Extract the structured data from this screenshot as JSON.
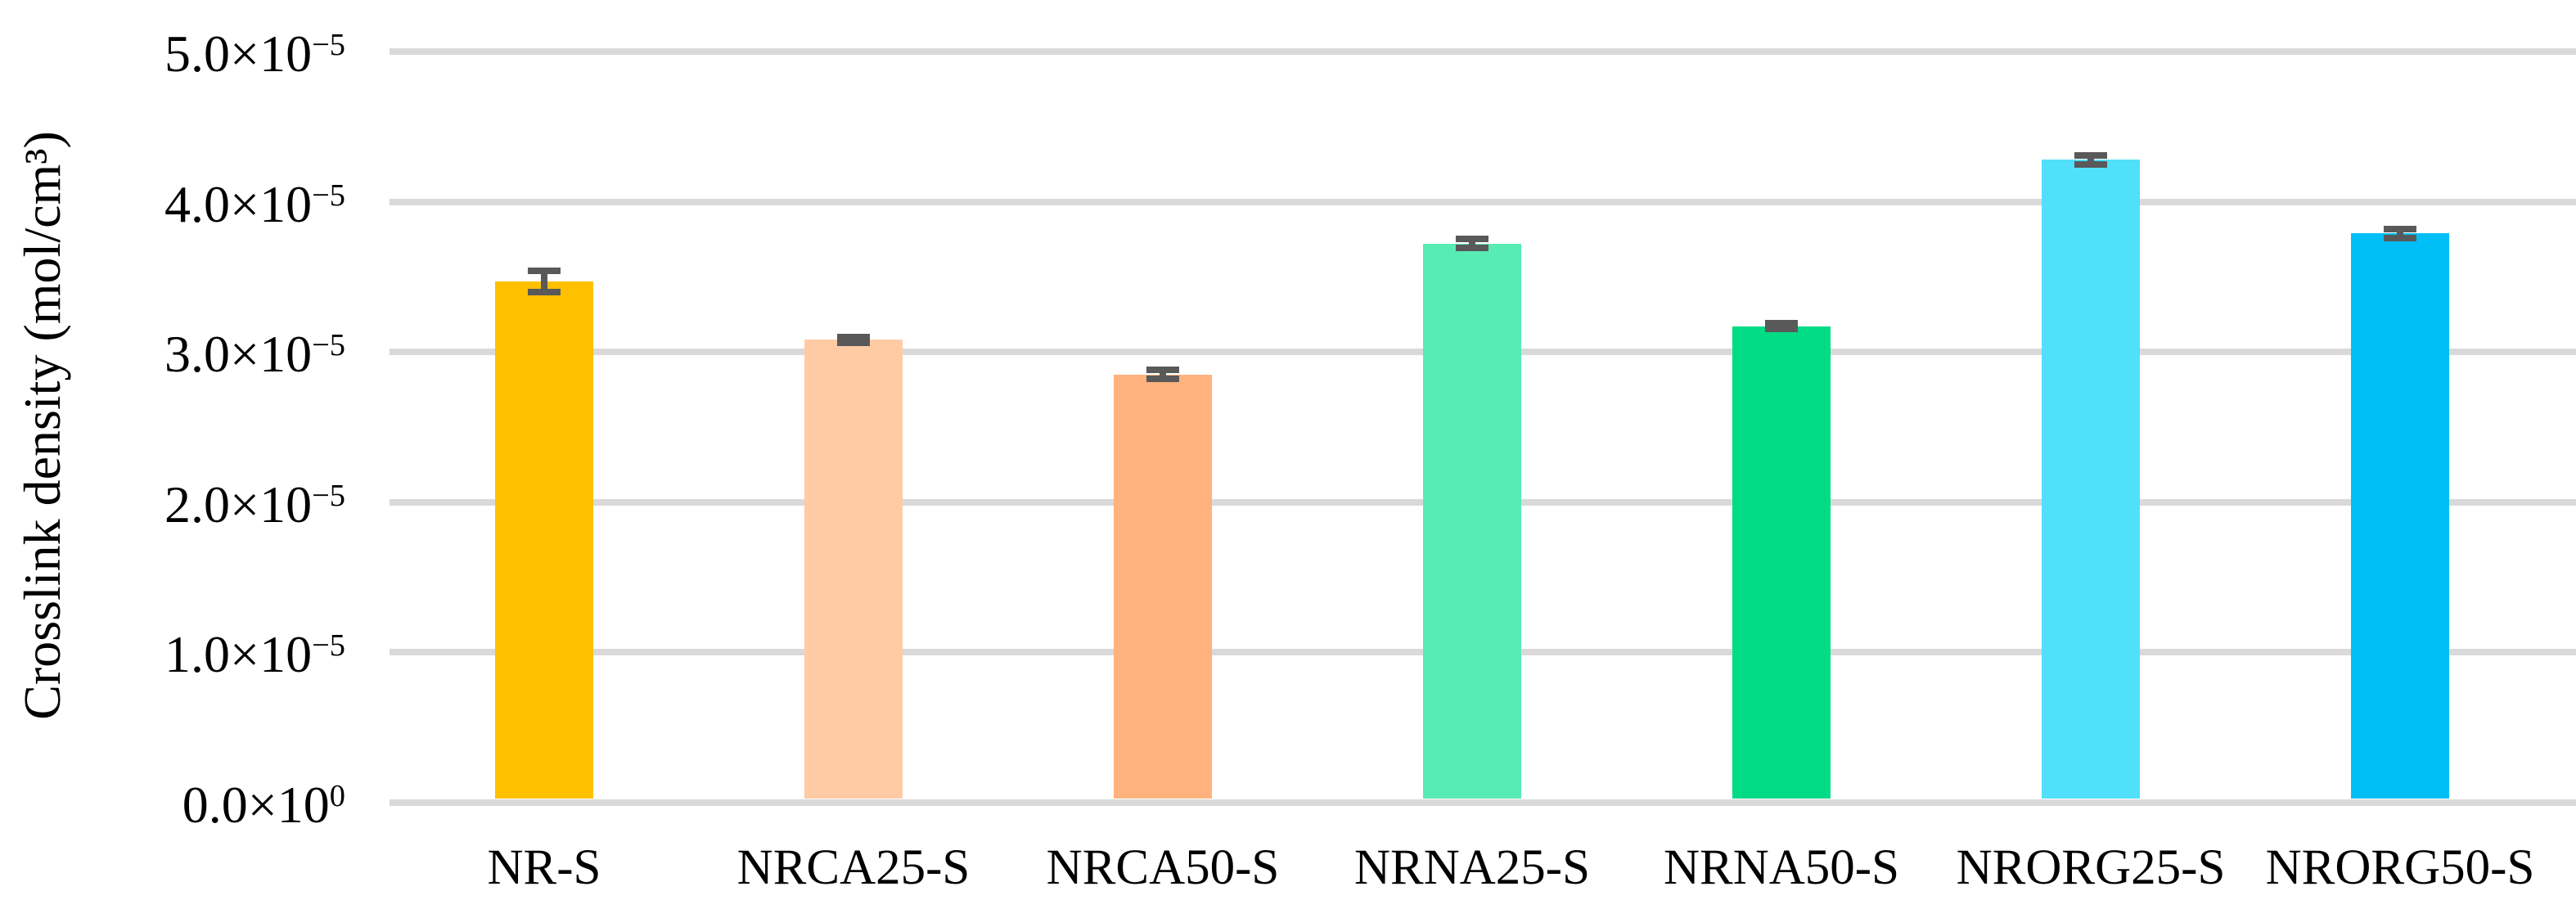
{
  "chart_data": {
    "type": "bar",
    "title": "",
    "xlabel": "",
    "ylabel": "Crosslink density (mol/cm³)",
    "categories": [
      "NR-S",
      "NRCA25-S",
      "NRCA50-S",
      "NRNA25-S",
      "NRNA50-S",
      "NRORG25-S",
      "NRORG50-S"
    ],
    "series": [
      {
        "name": "Crosslink density (mol/cm³)",
        "values": [
          3.47e-05,
          3.08e-05,
          2.85e-05,
          3.72e-05,
          3.17e-05,
          4.28e-05,
          3.79e-05
        ],
        "errors": [
          7e-07,
          2e-07,
          3e-07,
          3e-07,
          2e-07,
          3e-07,
          3e-07
        ]
      }
    ],
    "values_x1e5": [
      3.47,
      3.08,
      2.85,
      3.72,
      3.17,
      4.28,
      3.79
    ],
    "errors_x1e5": [
      0.07,
      0.02,
      0.03,
      0.03,
      0.02,
      0.03,
      0.03
    ],
    "bar_colors": [
      "#FFC000",
      "#FFCBA5",
      "#FFB27D",
      "#57EBB6",
      "#00DC85",
      "#50E0F9",
      "#00BFF7"
    ],
    "error_bar_color": "#595959",
    "gridline_color": "#D9D9D9",
    "axis_line_color": "#D9D9D9",
    "text_color": "#000000",
    "background_color": "#FFFFFF",
    "ylim": [
      0,
      5e-05
    ],
    "ylim_x1e5": [
      0,
      5
    ],
    "yticks": [
      {
        "coef": "0.0",
        "base": "×10",
        "exp": "0",
        "value_x1e5": 0
      },
      {
        "coef": "1.0",
        "base": "×10",
        "exp": "−5",
        "value_x1e5": 1
      },
      {
        "coef": "2.0",
        "base": "×10",
        "exp": "−5",
        "value_x1e5": 2
      },
      {
        "coef": "3.0",
        "base": "×10",
        "exp": "−5",
        "value_x1e5": 3
      },
      {
        "coef": "4.0",
        "base": "×10",
        "exp": "−5",
        "value_x1e5": 4
      },
      {
        "coef": "5.0",
        "base": "×10",
        "exp": "−5",
        "value_x1e5": 5
      }
    ],
    "grid": "horizontal",
    "legend": "none"
  }
}
